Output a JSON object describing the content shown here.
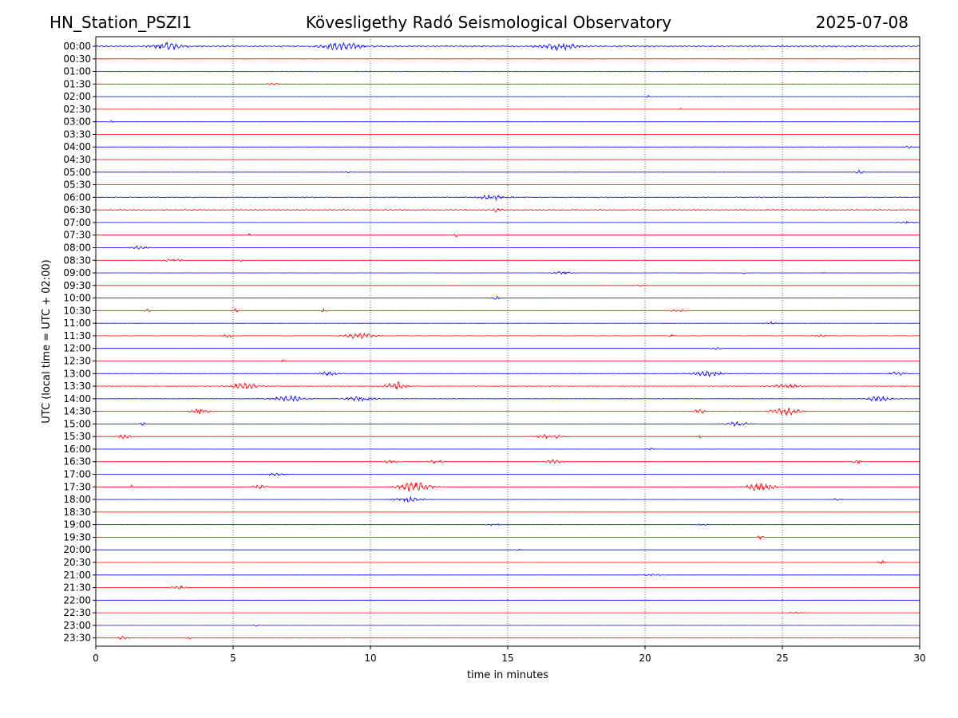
{
  "header": {
    "station": "HN_Station_PSZI1",
    "observatory": "Kövesligethy Radó Seismological Observatory",
    "date": "2025-07-08"
  },
  "chart_data": {
    "type": "line",
    "title": "Kövesligethy Radó Seismological Observatory",
    "xlabel": "time in minutes",
    "ylabel": "UTC (local time = UTC + 02:00)",
    "xlim": [
      0,
      30
    ],
    "x_ticks": [
      "0",
      "5",
      "10",
      "15",
      "20",
      "25",
      "30"
    ],
    "vertical_gridlines_at": [
      5,
      10,
      15,
      20,
      25
    ],
    "grid": "vertical dotted",
    "colors": {
      "even_rows": "#0000ff",
      "odd_rows": "#ff0000"
    },
    "rows": [
      {
        "label": "00:00",
        "activity": "continuous",
        "amp": 0.6,
        "events": [
          [
            2.6,
            0.55,
            0.5
          ],
          [
            9.0,
            0.5,
            0.6
          ],
          [
            16.9,
            0.45,
            0.6
          ]
        ]
      },
      {
        "label": "00:30",
        "activity": "quiet",
        "amp": 0.12,
        "events": []
      },
      {
        "label": "01:00",
        "activity": "continuous",
        "amp": 0.22,
        "events": []
      },
      {
        "label": "01:30",
        "activity": "quiet",
        "amp": 0.12,
        "events": [
          [
            6.5,
            0.15,
            0.3
          ]
        ]
      },
      {
        "label": "02:00",
        "activity": "quiet",
        "amp": 0.1,
        "events": [
          [
            20.1,
            0.35,
            0.05
          ]
        ]
      },
      {
        "label": "02:30",
        "activity": "quiet",
        "amp": 0.08,
        "events": [
          [
            21.3,
            0.2,
            0.04
          ]
        ]
      },
      {
        "label": "03:00",
        "activity": "quiet",
        "amp": 0.08,
        "events": [
          [
            0.6,
            0.15,
            0.1
          ]
        ]
      },
      {
        "label": "03:30",
        "activity": "quiet",
        "amp": 0.06,
        "events": []
      },
      {
        "label": "04:00",
        "activity": "quiet",
        "amp": 0.06,
        "events": [
          [
            29.6,
            0.2,
            0.1
          ]
        ]
      },
      {
        "label": "04:30",
        "activity": "quiet",
        "amp": 0.08,
        "events": []
      },
      {
        "label": "05:00",
        "activity": "quiet",
        "amp": 0.1,
        "events": [
          [
            9.2,
            0.15,
            0.15
          ],
          [
            27.8,
            0.3,
            0.15
          ]
        ]
      },
      {
        "label": "05:30",
        "activity": "quiet",
        "amp": 0.06,
        "events": []
      },
      {
        "label": "06:00",
        "activity": "continuous",
        "amp": 0.35,
        "events": [
          [
            14.5,
            0.3,
            0.5
          ]
        ]
      },
      {
        "label": "06:30",
        "activity": "continuous",
        "amp": 0.35,
        "events": [
          [
            14.6,
            0.3,
            0.15
          ]
        ]
      },
      {
        "label": "07:00",
        "activity": "quiet",
        "amp": 0.08,
        "events": [
          [
            29.5,
            0.15,
            0.3
          ]
        ]
      },
      {
        "label": "07:30",
        "activity": "quiet",
        "amp": 0.06,
        "events": [
          [
            5.6,
            0.25,
            0.05
          ],
          [
            13.1,
            1.0,
            0.03
          ]
        ]
      },
      {
        "label": "08:00",
        "activity": "quiet",
        "amp": 0.1,
        "events": [
          [
            1.6,
            0.3,
            0.3
          ]
        ]
      },
      {
        "label": "08:30",
        "activity": "quiet",
        "amp": 0.1,
        "events": [
          [
            2.8,
            0.2,
            0.4
          ],
          [
            5.3,
            0.3,
            0.05
          ]
        ]
      },
      {
        "label": "09:00",
        "activity": "quiet",
        "amp": 0.08,
        "events": [
          [
            17.0,
            0.3,
            0.3
          ],
          [
            23.6,
            0.2,
            0.05
          ],
          [
            26.5,
            0.2,
            0.05
          ]
        ]
      },
      {
        "label": "09:30",
        "activity": "quiet",
        "amp": 0.08,
        "events": [
          [
            19.8,
            0.15,
            0.1
          ]
        ]
      },
      {
        "label": "10:00",
        "activity": "quiet",
        "amp": 0.08,
        "events": [
          [
            14.6,
            0.2,
            0.2
          ]
        ]
      },
      {
        "label": "10:30",
        "activity": "quiet",
        "amp": 0.08,
        "events": [
          [
            1.9,
            0.35,
            0.1
          ],
          [
            5.1,
            0.25,
            0.1
          ],
          [
            8.3,
            0.3,
            0.1
          ],
          [
            21.2,
            0.15,
            0.3
          ]
        ]
      },
      {
        "label": "11:00",
        "activity": "quiet",
        "amp": 0.12,
        "events": [
          [
            24.6,
            0.25,
            0.15
          ]
        ]
      },
      {
        "label": "11:30",
        "activity": "quiet",
        "amp": 0.1,
        "events": [
          [
            4.8,
            0.3,
            0.2
          ],
          [
            9.6,
            0.45,
            0.5
          ],
          [
            21.0,
            0.4,
            0.08
          ],
          [
            26.4,
            0.15,
            0.3
          ]
        ]
      },
      {
        "label": "12:00",
        "activity": "quiet",
        "amp": 0.06,
        "events": [
          [
            22.6,
            0.15,
            0.2
          ]
        ]
      },
      {
        "label": "12:30",
        "activity": "quiet",
        "amp": 0.08,
        "events": [
          [
            6.8,
            0.2,
            0.05
          ],
          [
            25.0,
            0.2,
            0.05
          ]
        ]
      },
      {
        "label": "13:00",
        "activity": "continuous",
        "amp": 0.18,
        "events": [
          [
            8.5,
            0.25,
            0.3
          ],
          [
            22.3,
            0.35,
            0.5
          ],
          [
            29.2,
            0.25,
            0.3
          ]
        ]
      },
      {
        "label": "13:30",
        "activity": "continuous",
        "amp": 0.18,
        "events": [
          [
            5.4,
            0.4,
            0.5
          ],
          [
            10.9,
            0.6,
            0.35
          ],
          [
            25.2,
            0.3,
            0.5
          ]
        ]
      },
      {
        "label": "14:00",
        "activity": "continuous",
        "amp": 0.15,
        "events": [
          [
            7.0,
            0.4,
            0.6
          ],
          [
            9.6,
            0.3,
            0.5
          ],
          [
            28.5,
            0.3,
            0.5
          ]
        ]
      },
      {
        "label": "14:30",
        "activity": "quiet",
        "amp": 0.1,
        "events": [
          [
            3.8,
            0.4,
            0.3
          ],
          [
            22.0,
            0.3,
            0.2
          ],
          [
            25.1,
            0.55,
            0.5
          ]
        ]
      },
      {
        "label": "15:00",
        "activity": "quiet",
        "amp": 0.08,
        "events": [
          [
            1.7,
            0.3,
            0.08
          ],
          [
            23.4,
            0.35,
            0.4
          ]
        ]
      },
      {
        "label": "15:30",
        "activity": "quiet",
        "amp": 0.1,
        "events": [
          [
            1.0,
            0.25,
            0.3
          ],
          [
            16.5,
            0.4,
            0.4
          ],
          [
            22.0,
            0.5,
            0.05
          ]
        ]
      },
      {
        "label": "16:00",
        "activity": "quiet",
        "amp": 0.06,
        "events": [
          [
            20.2,
            0.15,
            0.1
          ]
        ]
      },
      {
        "label": "16:30",
        "activity": "quiet",
        "amp": 0.1,
        "events": [
          [
            10.7,
            0.25,
            0.3
          ],
          [
            12.4,
            0.25,
            0.3
          ],
          [
            16.7,
            0.3,
            0.3
          ],
          [
            27.7,
            0.35,
            0.15
          ]
        ]
      },
      {
        "label": "17:00",
        "activity": "quiet",
        "amp": 0.08,
        "events": [
          [
            6.5,
            0.2,
            0.4
          ]
        ]
      },
      {
        "label": "17:30",
        "activity": "quiet",
        "amp": 0.1,
        "events": [
          [
            1.3,
            0.3,
            0.05
          ],
          [
            6.0,
            0.3,
            0.3
          ],
          [
            11.6,
            0.7,
            0.6
          ],
          [
            24.2,
            0.55,
            0.5
          ]
        ]
      },
      {
        "label": "18:00",
        "activity": "quiet",
        "amp": 0.08,
        "events": [
          [
            11.4,
            0.35,
            0.5
          ],
          [
            27.0,
            0.15,
            0.2
          ]
        ]
      },
      {
        "label": "18:30",
        "activity": "quiet",
        "amp": 0.06,
        "events": []
      },
      {
        "label": "19:00",
        "activity": "quiet",
        "amp": 0.06,
        "events": [
          [
            14.5,
            0.15,
            0.3
          ],
          [
            22.1,
            0.15,
            0.2
          ]
        ]
      },
      {
        "label": "19:30",
        "activity": "quiet",
        "amp": 0.06,
        "events": [
          [
            24.2,
            0.3,
            0.1
          ]
        ]
      },
      {
        "label": "20:00",
        "activity": "quiet",
        "amp": 0.06,
        "events": [
          [
            15.4,
            0.15,
            0.1
          ]
        ]
      },
      {
        "label": "20:30",
        "activity": "quiet",
        "amp": 0.06,
        "events": [
          [
            28.6,
            0.25,
            0.15
          ]
        ]
      },
      {
        "label": "21:00",
        "activity": "quiet",
        "amp": 0.06,
        "events": [
          [
            20.3,
            0.15,
            0.3
          ]
        ]
      },
      {
        "label": "21:30",
        "activity": "quiet",
        "amp": 0.06,
        "events": [
          [
            3.0,
            0.25,
            0.3
          ]
        ]
      },
      {
        "label": "22:00",
        "activity": "quiet",
        "amp": 0.05,
        "events": []
      },
      {
        "label": "22:30",
        "activity": "quiet",
        "amp": 0.06,
        "events": [
          [
            25.5,
            0.12,
            0.3
          ]
        ]
      },
      {
        "label": "23:00",
        "activity": "quiet",
        "amp": 0.06,
        "events": [
          [
            5.8,
            0.12,
            0.1
          ]
        ]
      },
      {
        "label": "23:30",
        "activity": "quiet",
        "amp": 0.06,
        "events": [
          [
            1.0,
            0.25,
            0.2
          ],
          [
            3.4,
            0.15,
            0.1
          ]
        ]
      }
    ]
  }
}
